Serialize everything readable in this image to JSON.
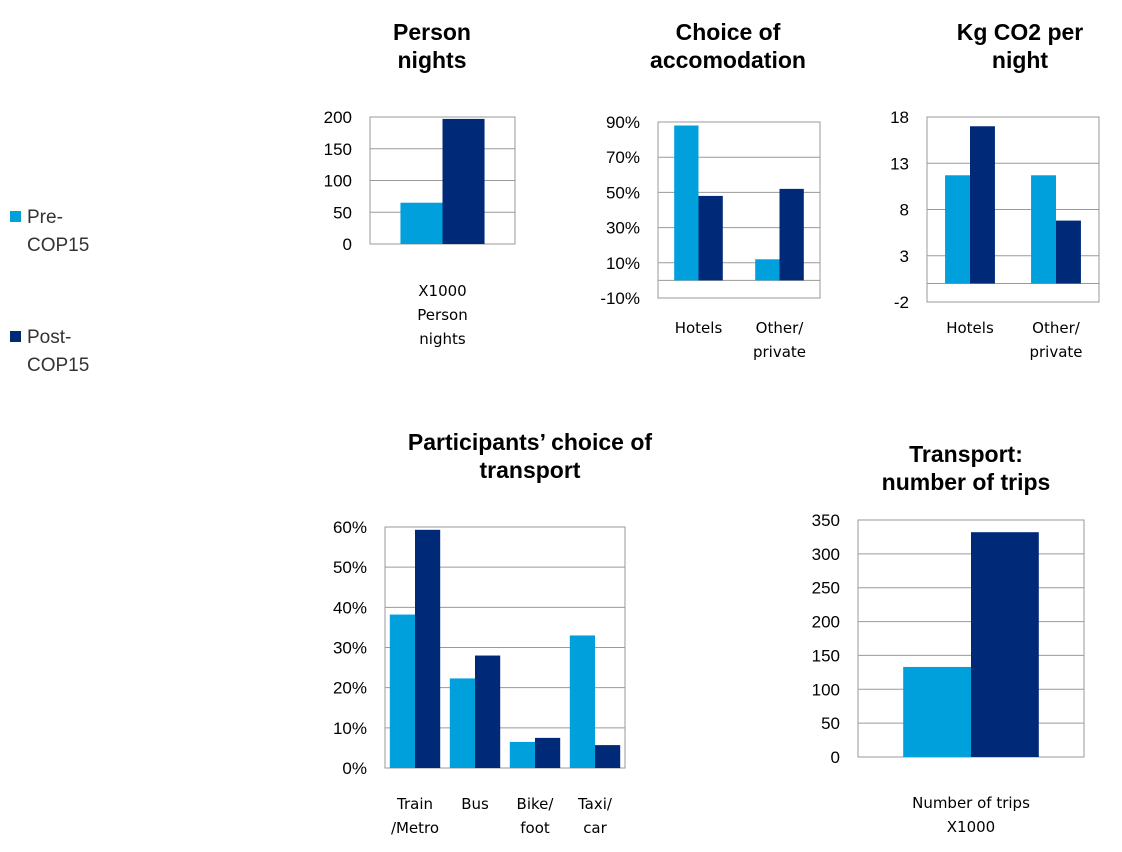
{
  "legend": [
    {
      "name": "Pre-\nCOP15",
      "color": "#00a0dc"
    },
    {
      "name": "Post-\nCOP15",
      "color": "#002a78"
    }
  ],
  "chart_data": [
    {
      "type": "bar",
      "title": "Person\nnights",
      "categories": [
        "X1000\nPerson\nnights"
      ],
      "series": [
        {
          "values": [
            65
          ]
        },
        {
          "values": [
            197
          ]
        }
      ],
      "ylim": [
        0,
        200
      ],
      "yticks": [
        0,
        50,
        100,
        150,
        200
      ],
      "grid": true
    },
    {
      "type": "bar",
      "title": "Choice of\naccomodation",
      "categories": [
        "Hotels",
        "Other/\nprivate"
      ],
      "series": [
        {
          "values": [
            88,
            12
          ]
        },
        {
          "values": [
            48,
            52
          ]
        }
      ],
      "ylim": [
        -10,
        90
      ],
      "yticks": [
        {
          "value": -10,
          "label": "-10%"
        },
        {
          "value": 10,
          "label": "10%"
        },
        {
          "value": 30,
          "label": "30%"
        },
        {
          "value": 50,
          "label": "50%"
        },
        {
          "value": 70,
          "label": "70%"
        },
        {
          "value": 90,
          "label": "90%"
        }
      ],
      "grid": true
    },
    {
      "type": "bar",
      "title": "Kg CO2 per\nnight",
      "categories": [
        "Hotels",
        "Other/\nprivate"
      ],
      "series": [
        {
          "values": [
            11.7,
            11.7
          ]
        },
        {
          "values": [
            17,
            6.8
          ]
        }
      ],
      "ylim": [
        -2,
        18
      ],
      "yticks": [
        -2,
        3,
        8,
        13,
        18
      ],
      "grid": true
    },
    {
      "type": "bar",
      "title": "Participants’ choice of\ntransport",
      "categories": [
        "Train\n/Metro",
        "Bus",
        "Bike/\nfoot",
        "Taxi/\ncar"
      ],
      "series": [
        {
          "values": [
            38.2,
            22.3,
            6.5,
            33
          ]
        },
        {
          "values": [
            59.3,
            28,
            7.5,
            5.7
          ]
        }
      ],
      "ylim": [
        0,
        60
      ],
      "yticks": [
        {
          "value": 0,
          "label": "0%"
        },
        {
          "value": 10,
          "label": "10%"
        },
        {
          "value": 20,
          "label": "20%"
        },
        {
          "value": 30,
          "label": "30%"
        },
        {
          "value": 40,
          "label": "40%"
        },
        {
          "value": 50,
          "label": "50%"
        },
        {
          "value": 60,
          "label": "60%"
        }
      ],
      "grid": true
    },
    {
      "type": "bar",
      "title": "Transport:\nnumber of trips",
      "categories": [
        "Number of trips\nX1000"
      ],
      "series": [
        {
          "values": [
            133
          ]
        },
        {
          "values": [
            332
          ]
        }
      ],
      "ylim": [
        0,
        350
      ],
      "yticks": [
        0,
        50,
        100,
        150,
        200,
        250,
        300,
        350
      ],
      "grid": true
    }
  ]
}
